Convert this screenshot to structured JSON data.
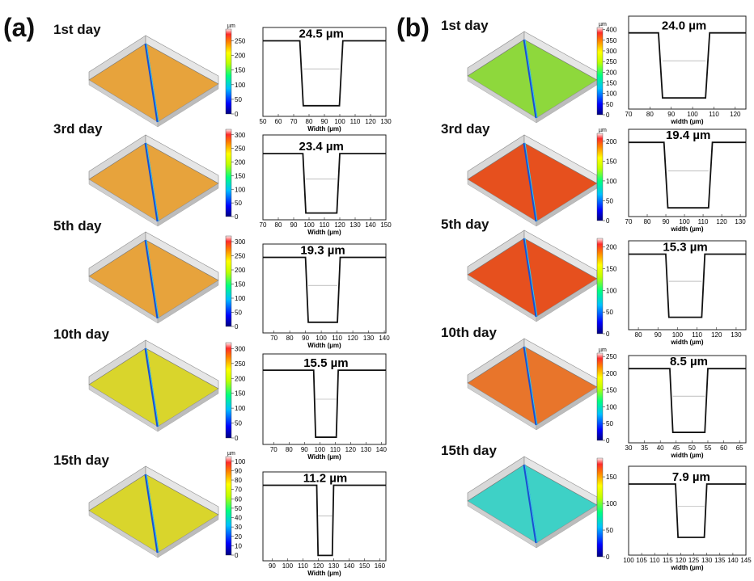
{
  "panels": [
    {
      "letter": "(a)",
      "rows": [
        {
          "day": "1st day",
          "unit": "µm",
          "cbar_ticks": [
            "250",
            "200",
            "150",
            "100",
            "50",
            "0"
          ],
          "cbar_max": 290,
          "surface": "orange",
          "width_label": "24.5 µm",
          "xticks": [
            "50",
            "60",
            "70",
            "80",
            "90",
            "100",
            "110",
            "120",
            "130"
          ],
          "xlabel": "Width (µm)",
          "profile": {
            "xmin": 50,
            "xmax": 130,
            "top": 0.85,
            "bottom": 0.12,
            "left": 74,
            "right": 102
          }
        },
        {
          "day": "3rd day",
          "unit": "",
          "cbar_ticks": [
            "300",
            "250",
            "200",
            "150",
            "100",
            "50",
            "0"
          ],
          "cbar_max": 320,
          "surface": "orange",
          "width_label": "23.4 µm",
          "xticks": [
            "70",
            "80",
            "90",
            "100",
            "110",
            "120",
            "130",
            "140",
            "150"
          ],
          "xlabel": "Width (µm)",
          "profile": {
            "xmin": 70,
            "xmax": 150,
            "top": 0.78,
            "bottom": 0.08,
            "left": 96,
            "right": 120
          }
        },
        {
          "day": "5th day",
          "unit": "",
          "cbar_ticks": [
            "300",
            "250",
            "200",
            "150",
            "100",
            "50",
            "0"
          ],
          "cbar_max": 320,
          "surface": "orange",
          "width_label": "19.3 µm",
          "xticks": [
            "70",
            "80",
            "90",
            "100",
            "110",
            "120",
            "130",
            "140"
          ],
          "xlabel": "Width (µm)",
          "profile": {
            "xmin": 63,
            "xmax": 141,
            "top": 0.85,
            "bottom": 0.12,
            "left": 90,
            "right": 112
          }
        },
        {
          "day": "10th day",
          "unit": "",
          "cbar_ticks": [
            "300",
            "250",
            "200",
            "150",
            "100",
            "50",
            "0"
          ],
          "cbar_max": 320,
          "surface": "yellow",
          "width_label": "15.5 µm",
          "xticks": [
            "70",
            "80",
            "90",
            "100",
            "110",
            "120",
            "130",
            "140"
          ],
          "xlabel": "Width (µm)",
          "profile": {
            "xmin": 63,
            "xmax": 143,
            "top": 0.82,
            "bottom": 0.08,
            "left": 96,
            "right": 112
          }
        },
        {
          "day": "15th day",
          "unit": "µm",
          "cbar_ticks": [
            "100",
            "90",
            "80",
            "70",
            "60",
            "50",
            "40",
            "30",
            "20",
            "10",
            "0"
          ],
          "cbar_max": 105,
          "surface": "yellow",
          "width_label": "11.2 µm",
          "xticks": [
            "90",
            "100",
            "110",
            "120",
            "130",
            "140",
            "150",
            "160"
          ],
          "xlabel": "Width (µm)",
          "profile": {
            "xmin": 84,
            "xmax": 164,
            "top": 0.85,
            "bottom": 0.06,
            "left": 119,
            "right": 130
          }
        }
      ]
    },
    {
      "letter": "(b)",
      "rows": [
        {
          "day": "1st day",
          "unit": "µm",
          "cbar_ticks": [
            "400",
            "350",
            "300",
            "250",
            "200",
            "150",
            "100",
            "50",
            "0"
          ],
          "cbar_max": 410,
          "surface": "green",
          "width_label": "24.0 µm",
          "xticks": [
            "70",
            "80",
            "90",
            "100",
            "110",
            "120"
          ],
          "xlabel": "width (µm)",
          "profile": {
            "xmin": 70,
            "xmax": 125,
            "top": 0.82,
            "bottom": 0.12,
            "left": 84,
            "right": 108
          }
        },
        {
          "day": "3rd day",
          "unit": "µm",
          "cbar_ticks": [
            "200",
            "150",
            "100",
            "50",
            "0"
          ],
          "cbar_max": 220,
          "surface": "red",
          "width_label": "19.4 µm",
          "xticks": [
            "70",
            "80",
            "90",
            "100",
            "110",
            "120",
            "130"
          ],
          "xlabel": "width (µm)",
          "profile": {
            "xmin": 70,
            "xmax": 133,
            "top": 0.85,
            "bottom": 0.1,
            "left": 89,
            "right": 115
          }
        },
        {
          "day": "5th day",
          "unit": "",
          "cbar_ticks": [
            "200",
            "150",
            "100",
            "50",
            "0"
          ],
          "cbar_max": 220,
          "surface": "red",
          "width_label": "15.3 µm",
          "xticks": [
            "80",
            "90",
            "100",
            "110",
            "120",
            "130"
          ],
          "xlabel": "width (µm)",
          "profile": {
            "xmin": 75,
            "xmax": 135,
            "top": 0.85,
            "bottom": 0.14,
            "left": 94,
            "right": 114
          }
        },
        {
          "day": "10th day",
          "unit": "µm",
          "cbar_ticks": [
            "250",
            "200",
            "150",
            "100",
            "50",
            "0"
          ],
          "cbar_max": 260,
          "surface": "orange-red",
          "width_label": "8.5 µm",
          "xticks": [
            "30",
            "35",
            "40",
            "45",
            "50",
            "55",
            "60",
            "65"
          ],
          "xlabel": "width (µm)",
          "profile": {
            "xmin": 30,
            "xmax": 67,
            "top": 0.85,
            "bottom": 0.12,
            "left": 43,
            "right": 55
          }
        },
        {
          "day": "15th day",
          "unit": "",
          "cbar_ticks": [
            "150",
            "100",
            "50",
            "0"
          ],
          "cbar_max": 185,
          "surface": "cyan",
          "width_label": "7.9 µm",
          "xticks": [
            "100",
            "105",
            "110",
            "115",
            "120",
            "125",
            "130",
            "135",
            "140",
            "145"
          ],
          "xlabel": "width (µm)",
          "profile": {
            "xmin": 100,
            "xmax": 145,
            "top": 0.8,
            "bottom": 0.2,
            "left": 118,
            "right": 130
          }
        }
      ]
    }
  ],
  "colors": {
    "orange": "#e7a33c",
    "yellow": "#d9d52c",
    "green": "#8ed83c",
    "red": "#e6501e",
    "orange-red": "#e8752b",
    "cyan": "#3ed1c6"
  }
}
